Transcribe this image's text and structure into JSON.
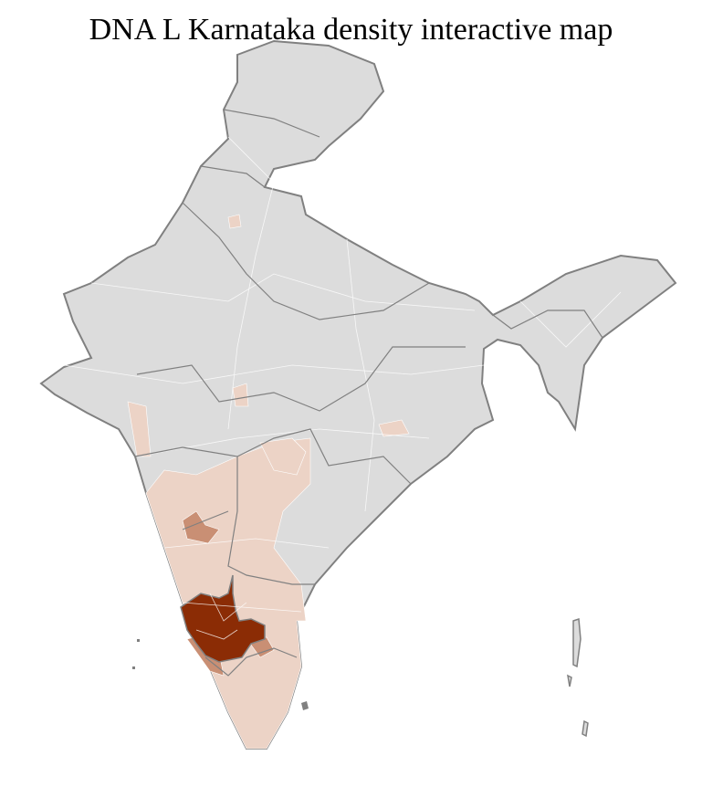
{
  "title": "DNA L Karnataka density interactive map",
  "colors": {
    "no_data": "#dcdcdc",
    "border": "#808080",
    "district_border": "#ffffff",
    "low_density": "#ecd3c6",
    "medium_density": "#c98f74",
    "high_density": "#8b2c05"
  }
}
